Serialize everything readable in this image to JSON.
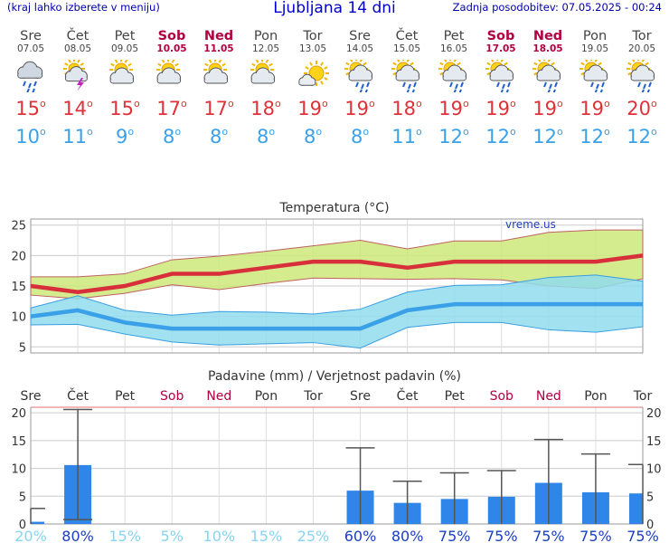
{
  "header": {
    "menu_hint": "(kraj lahko izberete v meniju)",
    "title": "Ljubljana 14 dni",
    "updated": "Zadnja posodobitev: 07.05.2025 - 00:24"
  },
  "colors": {
    "weekend": "#b00040",
    "tmax": "#e0303a",
    "tmin": "#3aa0e8",
    "bar": "#2f86e8"
  },
  "days": [
    {
      "name": "Sre",
      "date": "07.05",
      "weekend": false,
      "icon": "rain-cloud-icon",
      "tmax": "15",
      "tmin": "10"
    },
    {
      "name": "Čet",
      "date": "08.05",
      "weekend": false,
      "icon": "thunder-sun-icon",
      "tmax": "14",
      "tmin": "11"
    },
    {
      "name": "Pet",
      "date": "09.05",
      "weekend": false,
      "icon": "sun-cloud-icon",
      "tmax": "15",
      "tmin": "9"
    },
    {
      "name": "Sob",
      "date": "10.05",
      "weekend": true,
      "icon": "sun-cloud-icon",
      "tmax": "17",
      "tmin": "8"
    },
    {
      "name": "Ned",
      "date": "11.05",
      "weekend": true,
      "icon": "sun-cloud-icon",
      "tmax": "17",
      "tmin": "8"
    },
    {
      "name": "Pon",
      "date": "12.05",
      "weekend": false,
      "icon": "sun-cloud-icon",
      "tmax": "18",
      "tmin": "8"
    },
    {
      "name": "Tor",
      "date": "13.05",
      "weekend": false,
      "icon": "sunny-icon",
      "tmax": "19",
      "tmin": "8"
    },
    {
      "name": "Sre",
      "date": "14.05",
      "weekend": false,
      "icon": "sun-rain-icon",
      "tmax": "19",
      "tmin": "8"
    },
    {
      "name": "Čet",
      "date": "15.05",
      "weekend": false,
      "icon": "sun-rain-icon",
      "tmax": "18",
      "tmin": "11"
    },
    {
      "name": "Pet",
      "date": "16.05",
      "weekend": false,
      "icon": "sun-rain-icon",
      "tmax": "19",
      "tmin": "12"
    },
    {
      "name": "Sob",
      "date": "17.05",
      "weekend": true,
      "icon": "sun-rain-icon",
      "tmax": "19",
      "tmin": "12"
    },
    {
      "name": "Ned",
      "date": "18.05",
      "weekend": true,
      "icon": "sun-rain-icon",
      "tmax": "19",
      "tmin": "12"
    },
    {
      "name": "Pon",
      "date": "19.05",
      "weekend": false,
      "icon": "sun-rain-icon",
      "tmax": "19",
      "tmin": "12"
    },
    {
      "name": "Tor",
      "date": "20.05",
      "weekend": false,
      "icon": "sun-rain-icon",
      "tmax": "20",
      "tmin": "12"
    }
  ],
  "chart_data": [
    {
      "type": "area",
      "title": "Temperatura (°C)",
      "watermark": "vreme.us",
      "ylim": [
        4,
        26
      ],
      "yticks": [
        5,
        10,
        15,
        20,
        25
      ],
      "grid": true,
      "x": [
        0,
        1,
        2,
        3,
        4,
        5,
        6,
        7,
        8,
        9,
        10,
        11,
        12,
        13
      ],
      "series": [
        {
          "key": "tmax",
          "values": [
            15,
            14,
            15,
            17,
            17,
            18,
            19,
            19,
            18,
            19,
            19,
            19,
            19,
            20
          ],
          "band_low": [
            13.5,
            12.9,
            13.8,
            15.2,
            14.4,
            15.4,
            16.3,
            16.2,
            16.1,
            16.2,
            16.0,
            15.0,
            14.6,
            16.2
          ],
          "band_high": [
            16.5,
            16.5,
            17.0,
            19.3,
            19.9,
            20.7,
            21.6,
            22.5,
            21.1,
            22.4,
            22.4,
            23.8,
            24.2,
            24.2
          ]
        },
        {
          "key": "tmin",
          "values": [
            10,
            11,
            9,
            8,
            8,
            8,
            8,
            8,
            11,
            12,
            12,
            12,
            12,
            12
          ],
          "band_low": [
            8.6,
            8.7,
            7.1,
            5.8,
            5.3,
            5.5,
            5.7,
            4.8,
            8.2,
            9.0,
            9.0,
            7.8,
            7.4,
            8.3
          ],
          "band_high": [
            11.4,
            13.4,
            11.0,
            10.2,
            10.8,
            10.7,
            10.4,
            11.2,
            14.0,
            15.1,
            15.2,
            16.4,
            16.8,
            15.8
          ]
        }
      ]
    },
    {
      "type": "bar",
      "title": "Padavine (mm) / Verjetnost padavin (%)",
      "ylim": [
        0,
        21
      ],
      "yticks": [
        0,
        5,
        10,
        15,
        20
      ],
      "categories": [
        "Sre",
        "Čet",
        "Pet",
        "Sob",
        "Ned",
        "Pon",
        "Tor",
        "Sre",
        "Čet",
        "Pet",
        "Sob",
        "Ned",
        "Pon",
        "Tor"
      ],
      "values": [
        0.4,
        10.6,
        0,
        0,
        0,
        0,
        0,
        6.0,
        3.8,
        4.5,
        4.9,
        7.4,
        5.7,
        5.5
      ],
      "err_low": [
        0,
        0.8,
        0,
        0,
        0,
        0,
        0,
        0,
        0,
        0,
        0,
        0,
        0,
        0
      ],
      "err_high": [
        2.8,
        20.6,
        0,
        0,
        0,
        0,
        0,
        13.7,
        7.7,
        9.2,
        9.6,
        15.2,
        12.6,
        10.7
      ],
      "probability": [
        "20%",
        "80%",
        "15%",
        "5%",
        "10%",
        "15%",
        "25%",
        "60%",
        "80%",
        "75%",
        "75%",
        "75%",
        "75%",
        "75%"
      ],
      "weekend": [
        false,
        false,
        false,
        true,
        true,
        false,
        false,
        false,
        false,
        false,
        true,
        true,
        false,
        false
      ]
    }
  ]
}
